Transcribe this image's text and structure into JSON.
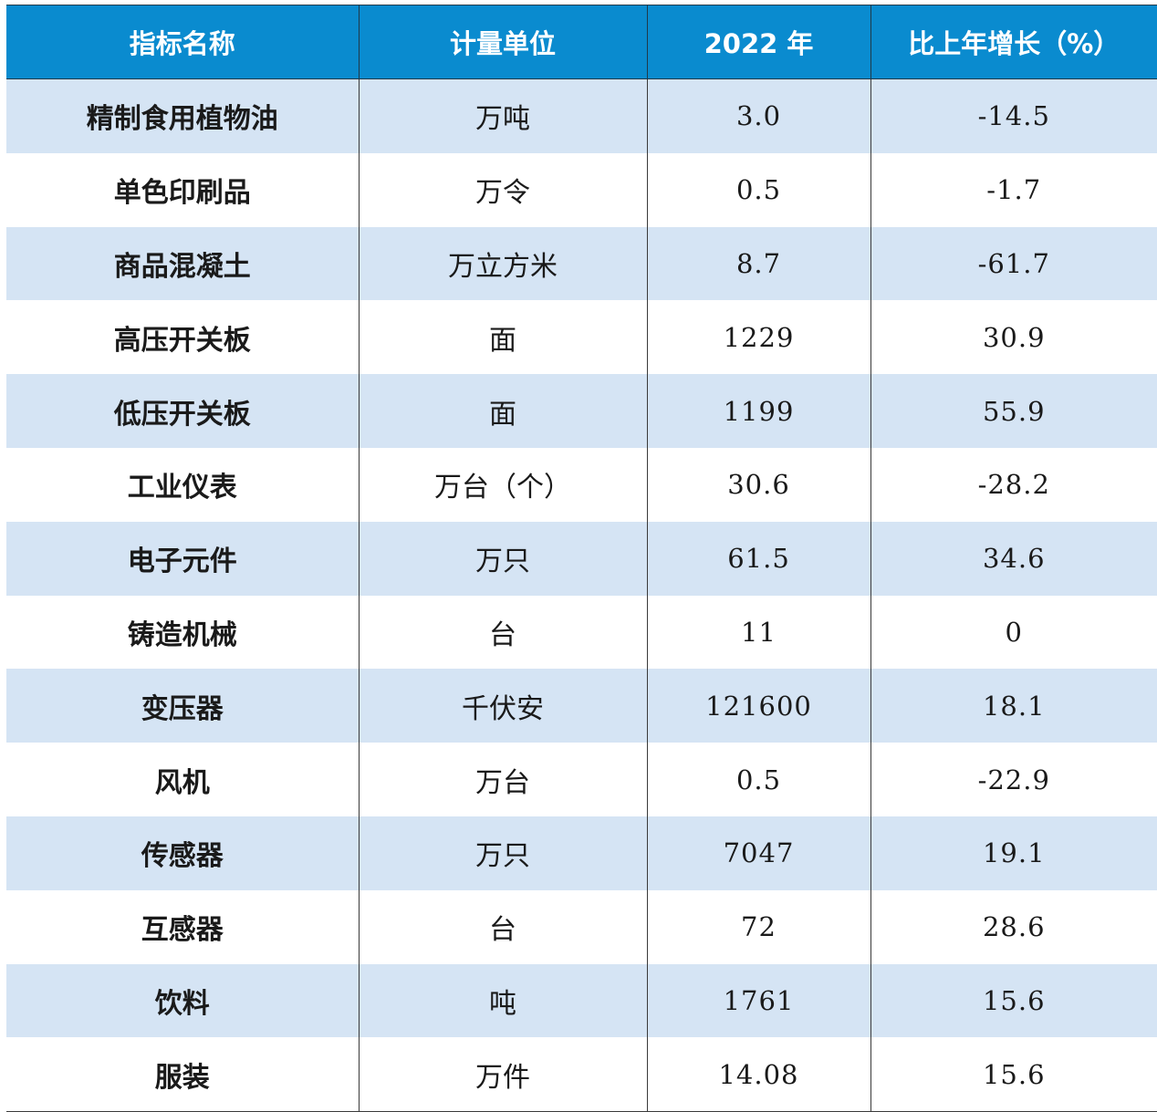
{
  "table": {
    "headers": [
      "指标名称",
      "计量单位",
      "2022 年",
      "比上年增长（%）"
    ],
    "rows": [
      {
        "name": "精制食用植物油",
        "unit": "万吨",
        "value_2022": "3.0",
        "growth": "-14.5"
      },
      {
        "name": "单色印刷品",
        "unit": "万令",
        "value_2022": "0.5",
        "growth": "-1.7"
      },
      {
        "name": "商品混凝土",
        "unit": "万立方米",
        "value_2022": "8.7",
        "growth": "-61.7"
      },
      {
        "name": "高压开关板",
        "unit": "面",
        "value_2022": "1229",
        "growth": "30.9"
      },
      {
        "name": "低压开关板",
        "unit": "面",
        "value_2022": "1199",
        "growth": "55.9"
      },
      {
        "name": "工业仪表",
        "unit": "万台（个）",
        "value_2022": "30.6",
        "growth": "-28.2"
      },
      {
        "name": "电子元件",
        "unit": "万只",
        "value_2022": "61.5",
        "growth": "34.6"
      },
      {
        "name": "铸造机械",
        "unit": "台",
        "value_2022": "11",
        "growth": "0"
      },
      {
        "name": "变压器",
        "unit": "千伏安",
        "value_2022": "121600",
        "growth": "18.1"
      },
      {
        "name": "风机",
        "unit": "万台",
        "value_2022": "0.5",
        "growth": "-22.9"
      },
      {
        "name": "传感器",
        "unit": "万只",
        "value_2022": "7047",
        "growth": "19.1"
      },
      {
        "name": "互感器",
        "unit": "台",
        "value_2022": "72",
        "growth": "28.6"
      },
      {
        "name": "饮料",
        "unit": "吨",
        "value_2022": "1761",
        "growth": "15.6"
      },
      {
        "name": "服装",
        "unit": "万件",
        "value_2022": "14.08",
        "growth": "15.6"
      }
    ]
  },
  "colors": {
    "header_bg": "#0a8bcf",
    "header_text": "#ffffff",
    "stripe_bg": "#d5e4f4",
    "plain_bg": "#ffffff"
  }
}
